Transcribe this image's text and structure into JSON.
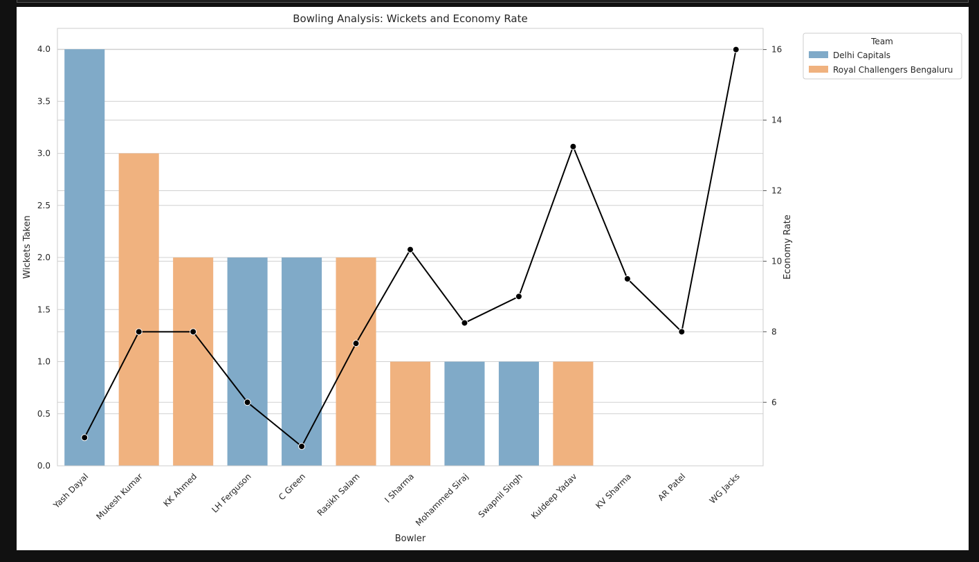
{
  "chart_data": {
    "type": "bar",
    "title": "Bowling Analysis: Wickets and Economy Rate",
    "xlabel": "Bowler",
    "ylabel": "Wickets Taken",
    "y2label": "Economy Rate",
    "ylim": [
      0,
      4.2
    ],
    "y2lim": [
      4.2,
      16.6
    ],
    "yticks": [
      "0.0",
      "0.5",
      "1.0",
      "1.5",
      "2.0",
      "2.5",
      "3.0",
      "3.5",
      "4.0"
    ],
    "y2ticks": [
      "6",
      "8",
      "10",
      "12",
      "14",
      "16"
    ],
    "grid": true,
    "categories": [
      "Yash Dayal",
      "Mukesh Kumar",
      "KK Ahmed",
      "LH Ferguson",
      "C Green",
      "Rasikh Salam",
      "I Sharma",
      "Mohammed Siraj",
      "Swapnil Singh",
      "Kuldeep Yadav",
      "KV Sharma",
      "AR Patel",
      "WG Jacks"
    ],
    "wickets": [
      4,
      3,
      2,
      2,
      2,
      2,
      1,
      1,
      1,
      1,
      0,
      0,
      0
    ],
    "teams": [
      "Delhi Capitals",
      "Royal Challengers Bengaluru",
      "Royal Challengers Bengaluru",
      "Delhi Capitals",
      "Delhi Capitals",
      "Royal Challengers Bengaluru",
      "Royal Challengers Bengaluru",
      "Delhi Capitals",
      "Delhi Capitals",
      "Royal Challengers Bengaluru",
      "Delhi Capitals",
      "Delhi Capitals",
      "Royal Challengers Bengaluru"
    ],
    "economy": [
      5.0,
      8.0,
      8.0,
      6.0,
      4.75,
      7.67,
      10.33,
      8.25,
      9.0,
      13.25,
      9.5,
      8.0,
      16.0
    ],
    "legend": {
      "title": "Team",
      "placement": "outside-top-right",
      "entries": [
        {
          "name": "Delhi Capitals",
          "color": "#80aac8"
        },
        {
          "name": "Royal Challengers Bengaluru",
          "color": "#f0b27f"
        }
      ]
    },
    "line_color": "#000000"
  }
}
